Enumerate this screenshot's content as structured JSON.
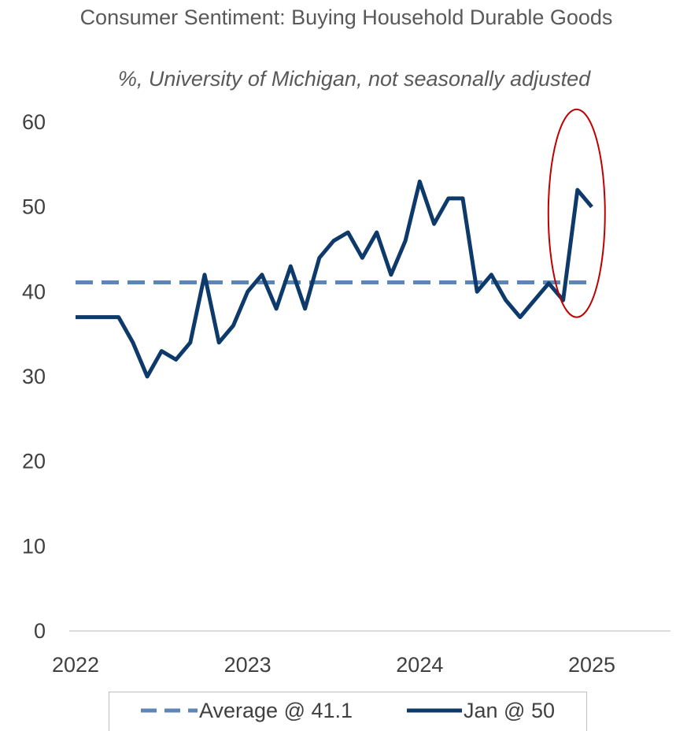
{
  "chart_data": {
    "type": "line",
    "title": "Consumer Sentiment: Buying Household Durable Goods",
    "subtitle": "%, University of Michigan, not seasonally adjusted",
    "x_ticks": [
      "2022",
      "2023",
      "2024",
      "2025"
    ],
    "y_ticks": [
      "0",
      "10",
      "20",
      "30",
      "40",
      "50",
      "60"
    ],
    "ylim": [
      0,
      60
    ],
    "xlim": [
      "2022-01",
      "2025-06"
    ],
    "grid": false,
    "legend_position": "bottom",
    "series": [
      {
        "name": "Jan @ 50",
        "style": "solid",
        "color": "#0d3a6b",
        "x": [
          "2022-01",
          "2022-02",
          "2022-03",
          "2022-04",
          "2022-05",
          "2022-06",
          "2022-07",
          "2022-08",
          "2022-09",
          "2022-10",
          "2022-11",
          "2022-12",
          "2023-01",
          "2023-02",
          "2023-03",
          "2023-04",
          "2023-05",
          "2023-06",
          "2023-07",
          "2023-08",
          "2023-09",
          "2023-10",
          "2023-11",
          "2023-12",
          "2024-01",
          "2024-02",
          "2024-03",
          "2024-04",
          "2024-05",
          "2024-06",
          "2024-07",
          "2024-08",
          "2024-09",
          "2024-10",
          "2024-11",
          "2024-12",
          "2025-01"
        ],
        "values": [
          37,
          37,
          37,
          37,
          34,
          30,
          33,
          32,
          34,
          42,
          34,
          36,
          40,
          42,
          38,
          43,
          38,
          44,
          46,
          47,
          44,
          47,
          42,
          46,
          53,
          48,
          51,
          51,
          40,
          42,
          39,
          37,
          39,
          41,
          39,
          52,
          50
        ]
      },
      {
        "name": "Average @ 41.1",
        "style": "dashed",
        "color": "#5b86b6",
        "x": [
          "2022-01",
          "2025-01"
        ],
        "values": [
          41.1,
          41.1
        ]
      }
    ],
    "annotations": [
      {
        "type": "ellipse",
        "color": "#c00000",
        "x_center": "2024-12",
        "y_range": [
          37,
          61.5
        ]
      }
    ]
  }
}
